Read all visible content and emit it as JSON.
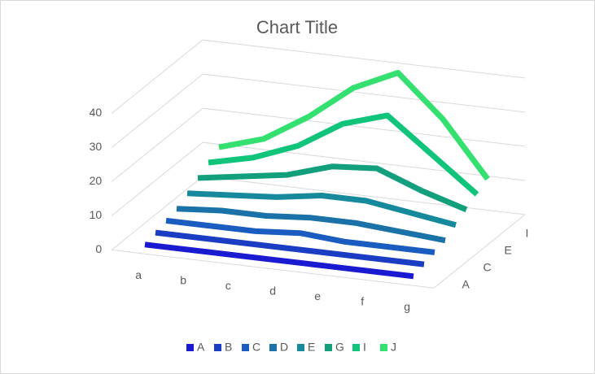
{
  "chart_data": {
    "type": "line3d",
    "title": "Chart Title",
    "categories": [
      "a",
      "b",
      "c",
      "d",
      "e",
      "f",
      "g"
    ],
    "series": [
      {
        "name": "A",
        "color": "#1a1ad0",
        "values": [
          1,
          1,
          1,
          1,
          1,
          1,
          1
        ]
      },
      {
        "name": "B",
        "color": "#1a3dc4",
        "values": [
          2,
          2,
          2,
          2,
          2,
          2,
          2
        ]
      },
      {
        "name": "C",
        "color": "#1a5cc0",
        "values": [
          3,
          3,
          3,
          4,
          3,
          3,
          3
        ]
      },
      {
        "name": "D",
        "color": "#1a72a8",
        "values": [
          4,
          5,
          5,
          6,
          6,
          5,
          4
        ]
      },
      {
        "name": "E",
        "color": "#168a9c",
        "values": [
          6,
          7,
          8,
          10,
          10,
          8,
          6
        ]
      },
      {
        "name": "G",
        "color": "#12a07c",
        "values": [
          8,
          10,
          12,
          16,
          17,
          12,
          8
        ]
      },
      {
        "name": "I",
        "color": "#10c47c",
        "values": [
          10,
          13,
          18,
          26,
          30,
          20,
          10
        ]
      },
      {
        "name": "J",
        "color": "#33e070",
        "values": [
          12,
          16,
          24,
          34,
          40,
          28,
          12
        ]
      }
    ],
    "depth_label_series": [
      0,
      2,
      4,
      6
    ],
    "ylim": [
      0,
      40
    ],
    "yticks": [
      0,
      10,
      20,
      30,
      40
    ],
    "grid": true,
    "legend": "bottom"
  }
}
